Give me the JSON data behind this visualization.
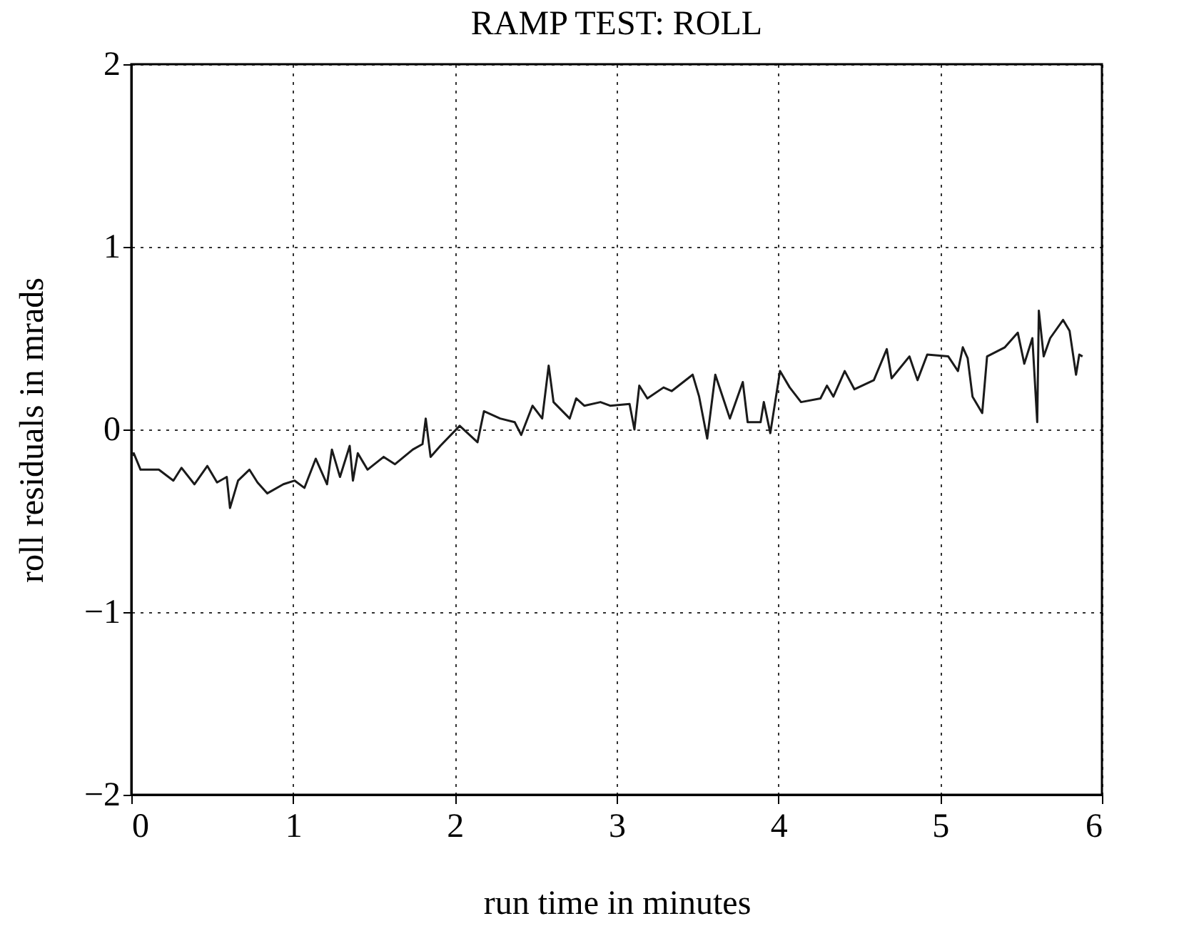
{
  "chart_data": {
    "type": "line",
    "title": "RAMP TEST: ROLL",
    "xlabel": "run time in minutes",
    "ylabel": "roll residuals in mrads",
    "xlim": [
      0,
      6
    ],
    "xticks": [
      0,
      1,
      2,
      3,
      4,
      5,
      6
    ],
    "ylim": [
      -2,
      2
    ],
    "yticks": [
      -2,
      -1,
      0,
      1,
      2
    ],
    "grid": true,
    "line_style": "solid",
    "series": [
      {
        "color": "#1a1a1a",
        "x": [
          0.0,
          0.015,
          0.057,
          0.17,
          0.26,
          0.31,
          0.39,
          0.47,
          0.53,
          0.59,
          0.61,
          0.66,
          0.73,
          0.78,
          0.84,
          0.94,
          1.01,
          1.07,
          1.14,
          1.21,
          1.24,
          1.29,
          1.35,
          1.37,
          1.4,
          1.46,
          1.56,
          1.63,
          1.74,
          1.8,
          1.82,
          1.85,
          1.91,
          2.03,
          2.14,
          2.18,
          2.28,
          2.37,
          2.41,
          2.48,
          2.54,
          2.58,
          2.61,
          2.71,
          2.75,
          2.8,
          2.9,
          2.96,
          3.08,
          3.11,
          3.14,
          3.19,
          3.29,
          3.34,
          3.47,
          3.51,
          3.56,
          3.61,
          3.7,
          3.78,
          3.81,
          3.89,
          3.91,
          3.95,
          4.01,
          4.07,
          4.14,
          4.26,
          4.3,
          4.34,
          4.41,
          4.47,
          4.59,
          4.67,
          4.7,
          4.81,
          4.86,
          4.92,
          5.05,
          5.11,
          5.14,
          5.17,
          5.2,
          5.26,
          5.29,
          5.4,
          5.48,
          5.52,
          5.57,
          5.6,
          5.61,
          5.64,
          5.68,
          5.76,
          5.8,
          5.84,
          5.86,
          5.88
        ],
        "values": [
          -0.15,
          -0.13,
          -0.22,
          -0.22,
          -0.28,
          -0.21,
          -0.3,
          -0.2,
          -0.29,
          -0.26,
          -0.43,
          -0.28,
          -0.22,
          -0.29,
          -0.35,
          -0.3,
          -0.28,
          -0.32,
          -0.16,
          -0.3,
          -0.11,
          -0.26,
          -0.09,
          -0.28,
          -0.13,
          -0.22,
          -0.15,
          -0.19,
          -0.11,
          -0.08,
          0.06,
          -0.15,
          -0.09,
          0.02,
          -0.07,
          0.1,
          0.06,
          0.04,
          -0.03,
          0.13,
          0.06,
          0.35,
          0.15,
          0.06,
          0.17,
          0.13,
          0.15,
          0.13,
          0.14,
          0.0,
          0.24,
          0.17,
          0.23,
          0.21,
          0.3,
          0.18,
          -0.05,
          0.3,
          0.06,
          0.26,
          0.04,
          0.04,
          0.15,
          -0.02,
          0.32,
          0.23,
          0.15,
          0.17,
          0.24,
          0.18,
          0.32,
          0.22,
          0.27,
          0.44,
          0.28,
          0.4,
          0.27,
          0.41,
          0.4,
          0.32,
          0.45,
          0.39,
          0.18,
          0.09,
          0.4,
          0.45,
          0.53,
          0.36,
          0.5,
          0.04,
          0.65,
          0.4,
          0.5,
          0.6,
          0.54,
          0.3,
          0.41,
          0.4
        ]
      }
    ]
  }
}
